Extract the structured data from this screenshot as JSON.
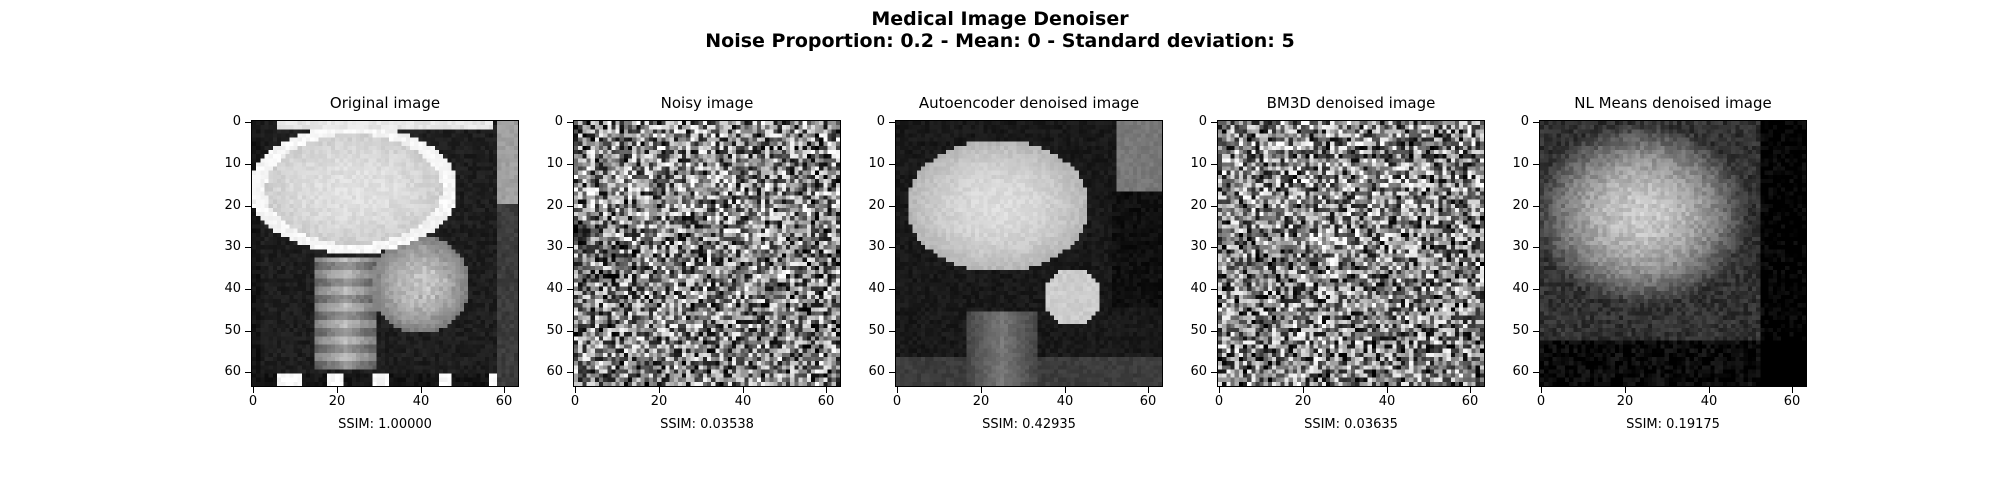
{
  "title": "Medical Image Denoiser",
  "subtitle": "Noise Proportion: 0.2 - Mean: 0 - Standard deviation: 5",
  "chart_data": [
    {
      "type": "heatmap",
      "title": "Original image",
      "xlabel": "SSIM: 1.00000",
      "xticks": [
        0,
        20,
        40,
        60
      ],
      "yticks": [
        0,
        10,
        20,
        30,
        40,
        50,
        60
      ],
      "xlim": [
        0,
        63
      ],
      "ylim": [
        63,
        0
      ],
      "image": "original",
      "ssim": 1.0
    },
    {
      "type": "heatmap",
      "title": "Noisy image",
      "xlabel": "SSIM: 0.03538",
      "xticks": [
        0,
        20,
        40,
        60
      ],
      "yticks": [
        0,
        10,
        20,
        30,
        40,
        50,
        60
      ],
      "xlim": [
        0,
        63
      ],
      "ylim": [
        63,
        0
      ],
      "image": "noisy",
      "ssim": 0.03538
    },
    {
      "type": "heatmap",
      "title": "Autoencoder denoised image",
      "xlabel": "SSIM: 0.42935",
      "xticks": [
        0,
        20,
        40,
        60
      ],
      "yticks": [
        0,
        10,
        20,
        30,
        40,
        50,
        60
      ],
      "xlim": [
        0,
        63
      ],
      "ylim": [
        63,
        0
      ],
      "image": "autoencoder",
      "ssim": 0.42935
    },
    {
      "type": "heatmap",
      "title": "BM3D denoised image",
      "xlabel": "SSIM: 0.03635",
      "xticks": [
        0,
        20,
        40,
        60
      ],
      "yticks": [
        0,
        10,
        20,
        30,
        40,
        50,
        60
      ],
      "xlim": [
        0,
        63
      ],
      "ylim": [
        63,
        0
      ],
      "image": "bm3d",
      "ssim": 0.03635
    },
    {
      "type": "heatmap",
      "title": "NL Means denoised image",
      "xlabel": "SSIM: 0.19175",
      "xticks": [
        0,
        20,
        40,
        60
      ],
      "yticks": [
        0,
        10,
        20,
        30,
        40,
        50,
        60
      ],
      "xlim": [
        0,
        63
      ],
      "ylim": [
        63,
        0
      ],
      "image": "nlmeans",
      "ssim": 0.19175
    }
  ]
}
